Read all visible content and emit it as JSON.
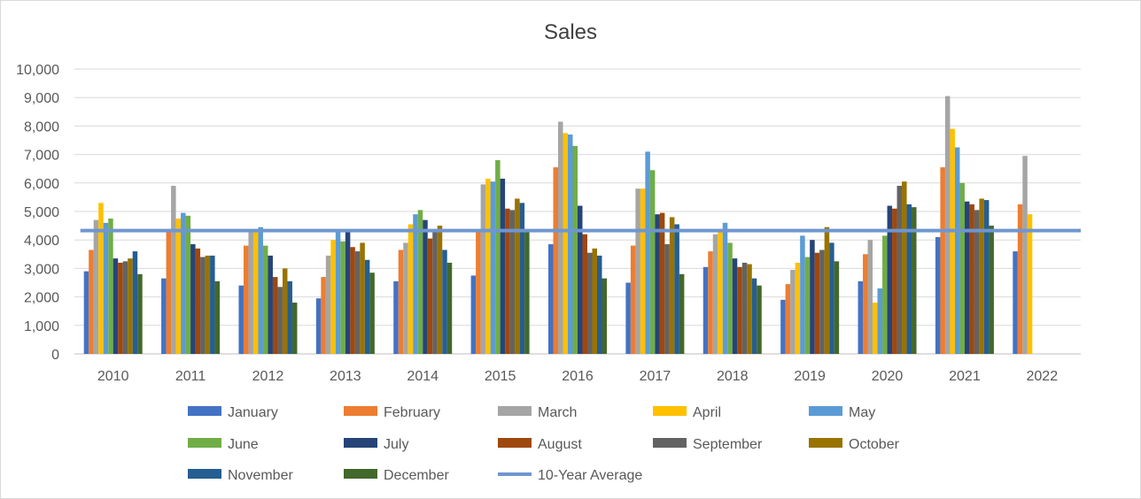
{
  "chart_data": {
    "type": "bar",
    "title": "Sales",
    "xlabel": "",
    "ylabel": "",
    "ylim": [
      0,
      10000
    ],
    "ytick_step": 1000,
    "grid": true,
    "legend_position": "bottom",
    "categories": [
      "2010",
      "2011",
      "2012",
      "2013",
      "2014",
      "2015",
      "2016",
      "2017",
      "2018",
      "2019",
      "2020",
      "2021",
      "2022"
    ],
    "series": [
      {
        "name": "January",
        "color": "#4472C4",
        "values": [
          2900,
          2650,
          2400,
          1950,
          2550,
          2750,
          3850,
          2500,
          3050,
          1900,
          2550,
          4100,
          3600
        ]
      },
      {
        "name": "February",
        "color": "#ED7D31",
        "values": [
          3650,
          4300,
          3800,
          2700,
          3650,
          4300,
          6550,
          3800,
          3600,
          2450,
          3500,
          6550,
          5250
        ]
      },
      {
        "name": "March",
        "color": "#A5A5A5",
        "values": [
          4700,
          5900,
          4300,
          3450,
          3900,
          5950,
          8150,
          5800,
          4200,
          2950,
          4000,
          9050,
          6950
        ]
      },
      {
        "name": "April",
        "color": "#FFC000",
        "values": [
          5300,
          4750,
          4300,
          4000,
          4550,
          6150,
          7750,
          5800,
          4300,
          3200,
          1800,
          7900,
          4900
        ]
      },
      {
        "name": "May",
        "color": "#5B9BD5",
        "values": [
          4600,
          4950,
          4450,
          4350,
          4900,
          6050,
          7700,
          7100,
          4600,
          4150,
          2300,
          7250,
          null
        ]
      },
      {
        "name": "June",
        "color": "#70AD47",
        "values": [
          4750,
          4850,
          3800,
          3950,
          5050,
          6800,
          7300,
          6450,
          3900,
          3400,
          4150,
          6000,
          null
        ]
      },
      {
        "name": "July",
        "color": "#264478",
        "values": [
          3350,
          3850,
          3450,
          4350,
          4700,
          6150,
          5200,
          4900,
          3350,
          4000,
          5200,
          5350,
          null
        ]
      },
      {
        "name": "August",
        "color": "#9E480E",
        "values": [
          3200,
          3700,
          2700,
          3750,
          4050,
          5100,
          4200,
          4950,
          3050,
          3550,
          5100,
          5250,
          null
        ]
      },
      {
        "name": "September",
        "color": "#636363",
        "values": [
          3250,
          3400,
          2350,
          3600,
          4300,
          5050,
          3550,
          3850,
          3200,
          3650,
          5900,
          5050,
          null
        ]
      },
      {
        "name": "October",
        "color": "#997300",
        "values": [
          3350,
          3450,
          3000,
          3900,
          4500,
          5450,
          3700,
          4800,
          3150,
          4450,
          6050,
          5450,
          null
        ]
      },
      {
        "name": "November",
        "color": "#255E91",
        "values": [
          3600,
          3450,
          2550,
          3300,
          3650,
          5300,
          3450,
          4550,
          2650,
          3900,
          5250,
          5400,
          null
        ]
      },
      {
        "name": "December",
        "color": "#43682B",
        "values": [
          2800,
          2550,
          1800,
          2850,
          3200,
          4300,
          2650,
          2800,
          2400,
          3250,
          5150,
          4500,
          null
        ]
      }
    ],
    "average_line": {
      "name": "10-Year Average",
      "color": "#6F96CF",
      "value": 4330
    }
  }
}
